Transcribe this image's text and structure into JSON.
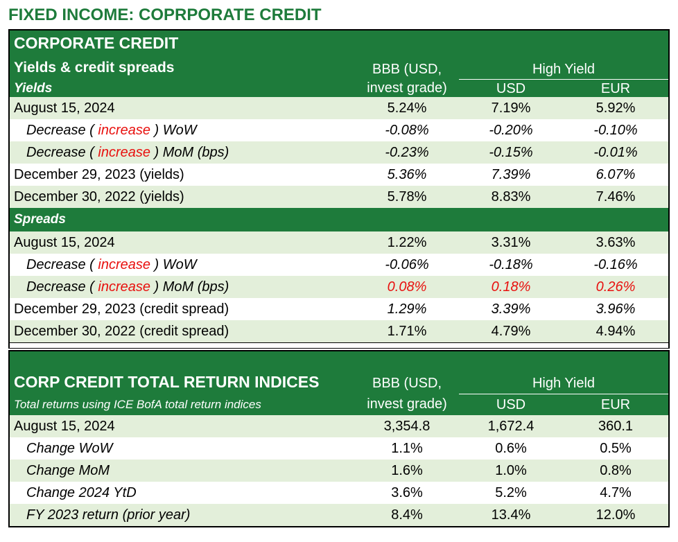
{
  "page_title": "FIXED INCOME: COPRPORATE CREDIT",
  "credit": {
    "title": "CORPORATE CREDIT",
    "subtitle": "Yields & credit spreads",
    "yields_label": "Yields",
    "spreads_label": "Spreads",
    "col_bbb_line1": "BBB (USD,",
    "col_bbb_line2": "invest grade)",
    "col_high_yield": "High Yield",
    "col_usd": "USD",
    "col_eur": "EUR",
    "yields_rows": [
      {
        "label": "August 15, 2024",
        "bbb": "5.24%",
        "usd": "7.19%",
        "eur": "5.92%"
      },
      {
        "label_prefix": "Decrease ( ",
        "label_red": "increase",
        "label_suffix": " ) WoW",
        "bbb": "-0.08%",
        "usd": "-0.20%",
        "eur": "-0.10%"
      },
      {
        "label_prefix": "Decrease ( ",
        "label_red": "increase",
        "label_suffix": " ) MoM (bps)",
        "bbb": "-0.23%",
        "usd": "-0.15%",
        "eur": "-0.01%"
      },
      {
        "label": "December 29, 2023 (yields)",
        "bbb": "5.36%",
        "usd": "7.39%",
        "eur": "6.07%"
      },
      {
        "label": "December 30, 2022 (yields)",
        "bbb": "5.78%",
        "usd": "8.83%",
        "eur": "7.46%"
      }
    ],
    "spreads_rows": [
      {
        "label": "August 15, 2024",
        "bbb": "1.22%",
        "usd": "3.31%",
        "eur": "3.63%"
      },
      {
        "label_prefix": "Decrease ( ",
        "label_red": "increase",
        "label_suffix": " ) WoW",
        "bbb": "-0.06%",
        "usd": "-0.18%",
        "eur": "-0.16%"
      },
      {
        "label_prefix": "Decrease ( ",
        "label_red": "increase",
        "label_suffix": " ) MoM (bps)",
        "bbb": "0.08%",
        "usd": "0.18%",
        "eur": "0.26%"
      },
      {
        "label": "December 29, 2023 (credit spread)",
        "bbb": "1.29%",
        "usd": "3.39%",
        "eur": "3.96%"
      },
      {
        "label": "December 30, 2022 (credit spread)",
        "bbb": "1.71%",
        "usd": "4.79%",
        "eur": "4.94%"
      }
    ]
  },
  "returns": {
    "title": "CORP CREDIT TOTAL RETURN INDICES",
    "subtitle": "Total returns using ICE BofA total return indices",
    "col_bbb_line1": "BBB (USD,",
    "col_bbb_line2": "invest grade)",
    "col_high_yield": "High Yield",
    "col_usd": "USD",
    "col_eur": "EUR",
    "rows": [
      {
        "label": "August 15, 2024",
        "bbb": "3,354.8",
        "usd": "1,672.4",
        "eur": "360.1"
      },
      {
        "label": "Change WoW",
        "bbb": "1.1%",
        "usd": "0.6%",
        "eur": "0.5%"
      },
      {
        "label": "Change MoM",
        "bbb": "1.6%",
        "usd": "1.0%",
        "eur": "0.8%"
      },
      {
        "label": "Change 2024 YtD",
        "bbb": "3.6%",
        "usd": "5.2%",
        "eur": "4.7%"
      },
      {
        "label": "FY 2023 return (prior year)",
        "bbb": "8.4%",
        "usd": "13.4%",
        "eur": "12.0%"
      }
    ]
  },
  "colors": {
    "header_green": "#1e7b3b",
    "row_light_green": "#e3efda",
    "negative_red": "#e8100e"
  }
}
